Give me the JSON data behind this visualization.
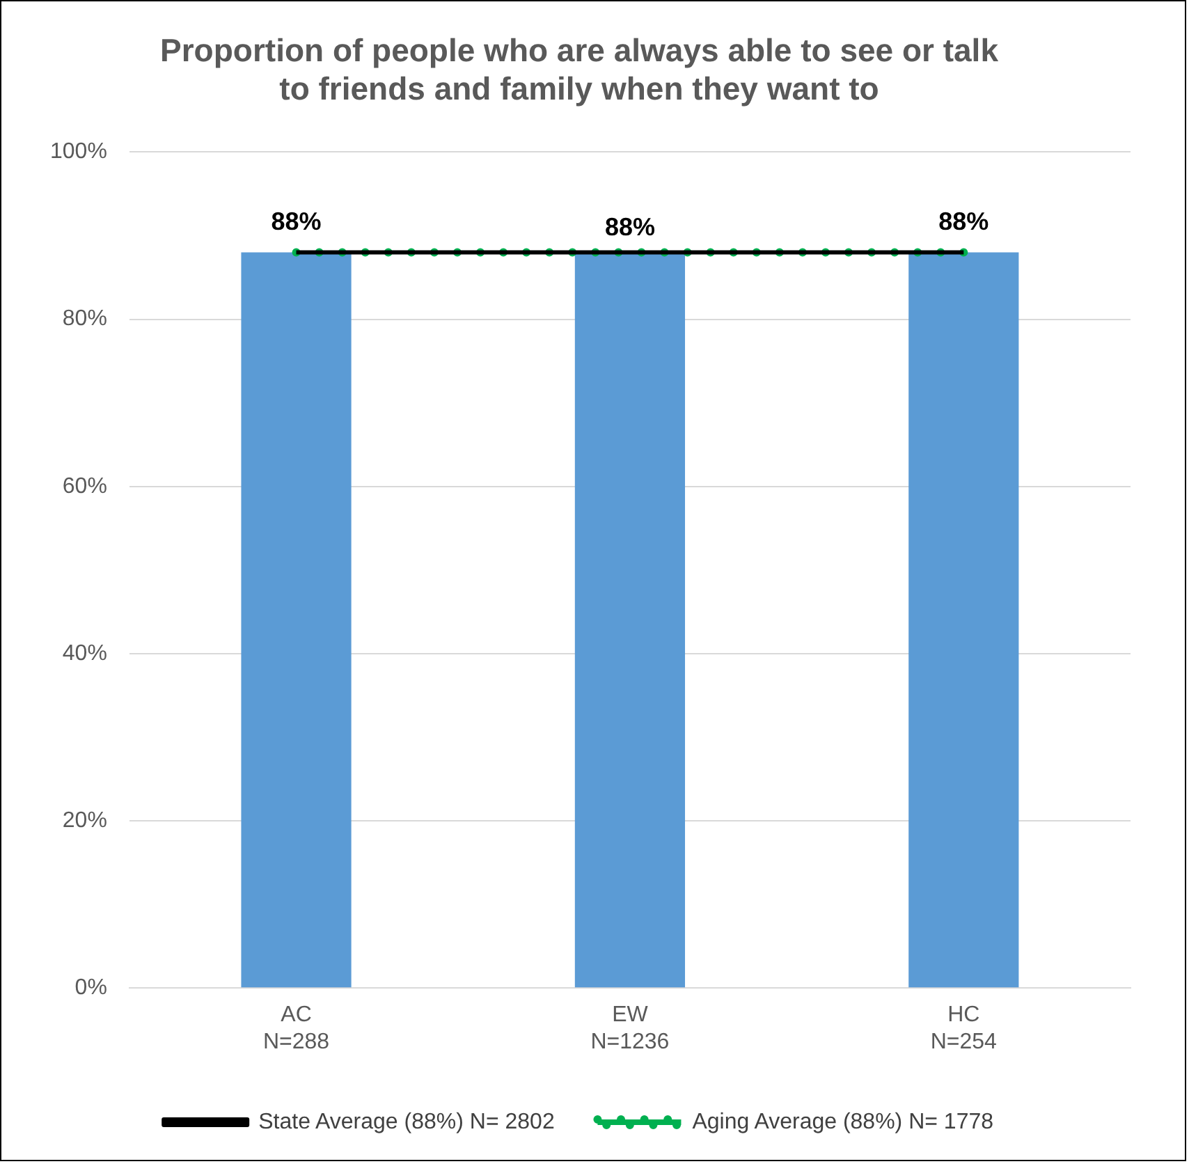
{
  "chart_data": {
    "type": "bar",
    "title": "Proportion of people who are always able to see or talk\nto friends and family when they want to",
    "categories": [
      "AC\nN=288",
      "EW\nN=1236",
      "HC\nN=254"
    ],
    "series": [
      {
        "color": "#5b9bd5",
        "values": [
          88,
          88,
          88
        ],
        "value_labels": [
          "88%",
          "88%",
          "88%"
        ]
      },
      {
        "type": "line",
        "name": "State Average (88%) N= 2802",
        "color": "#000000",
        "values": [
          88,
          88,
          88
        ],
        "line_style": "solid"
      },
      {
        "type": "line",
        "name": "Aging Average (88%) N= 1778",
        "color": "#00b050",
        "values": [
          88,
          88,
          88
        ],
        "line_style": "dotted"
      }
    ],
    "ylim": [
      0,
      100
    ],
    "yticks": [
      {
        "value": 0,
        "label": "0%"
      },
      {
        "value": 20,
        "label": "20%"
      },
      {
        "value": 40,
        "label": "40%"
      },
      {
        "value": 60,
        "label": "60%"
      },
      {
        "value": 80,
        "label": "80%"
      },
      {
        "value": 100,
        "label": "100%"
      }
    ],
    "grid": "y",
    "legend": "bottom",
    "marker": "none"
  }
}
